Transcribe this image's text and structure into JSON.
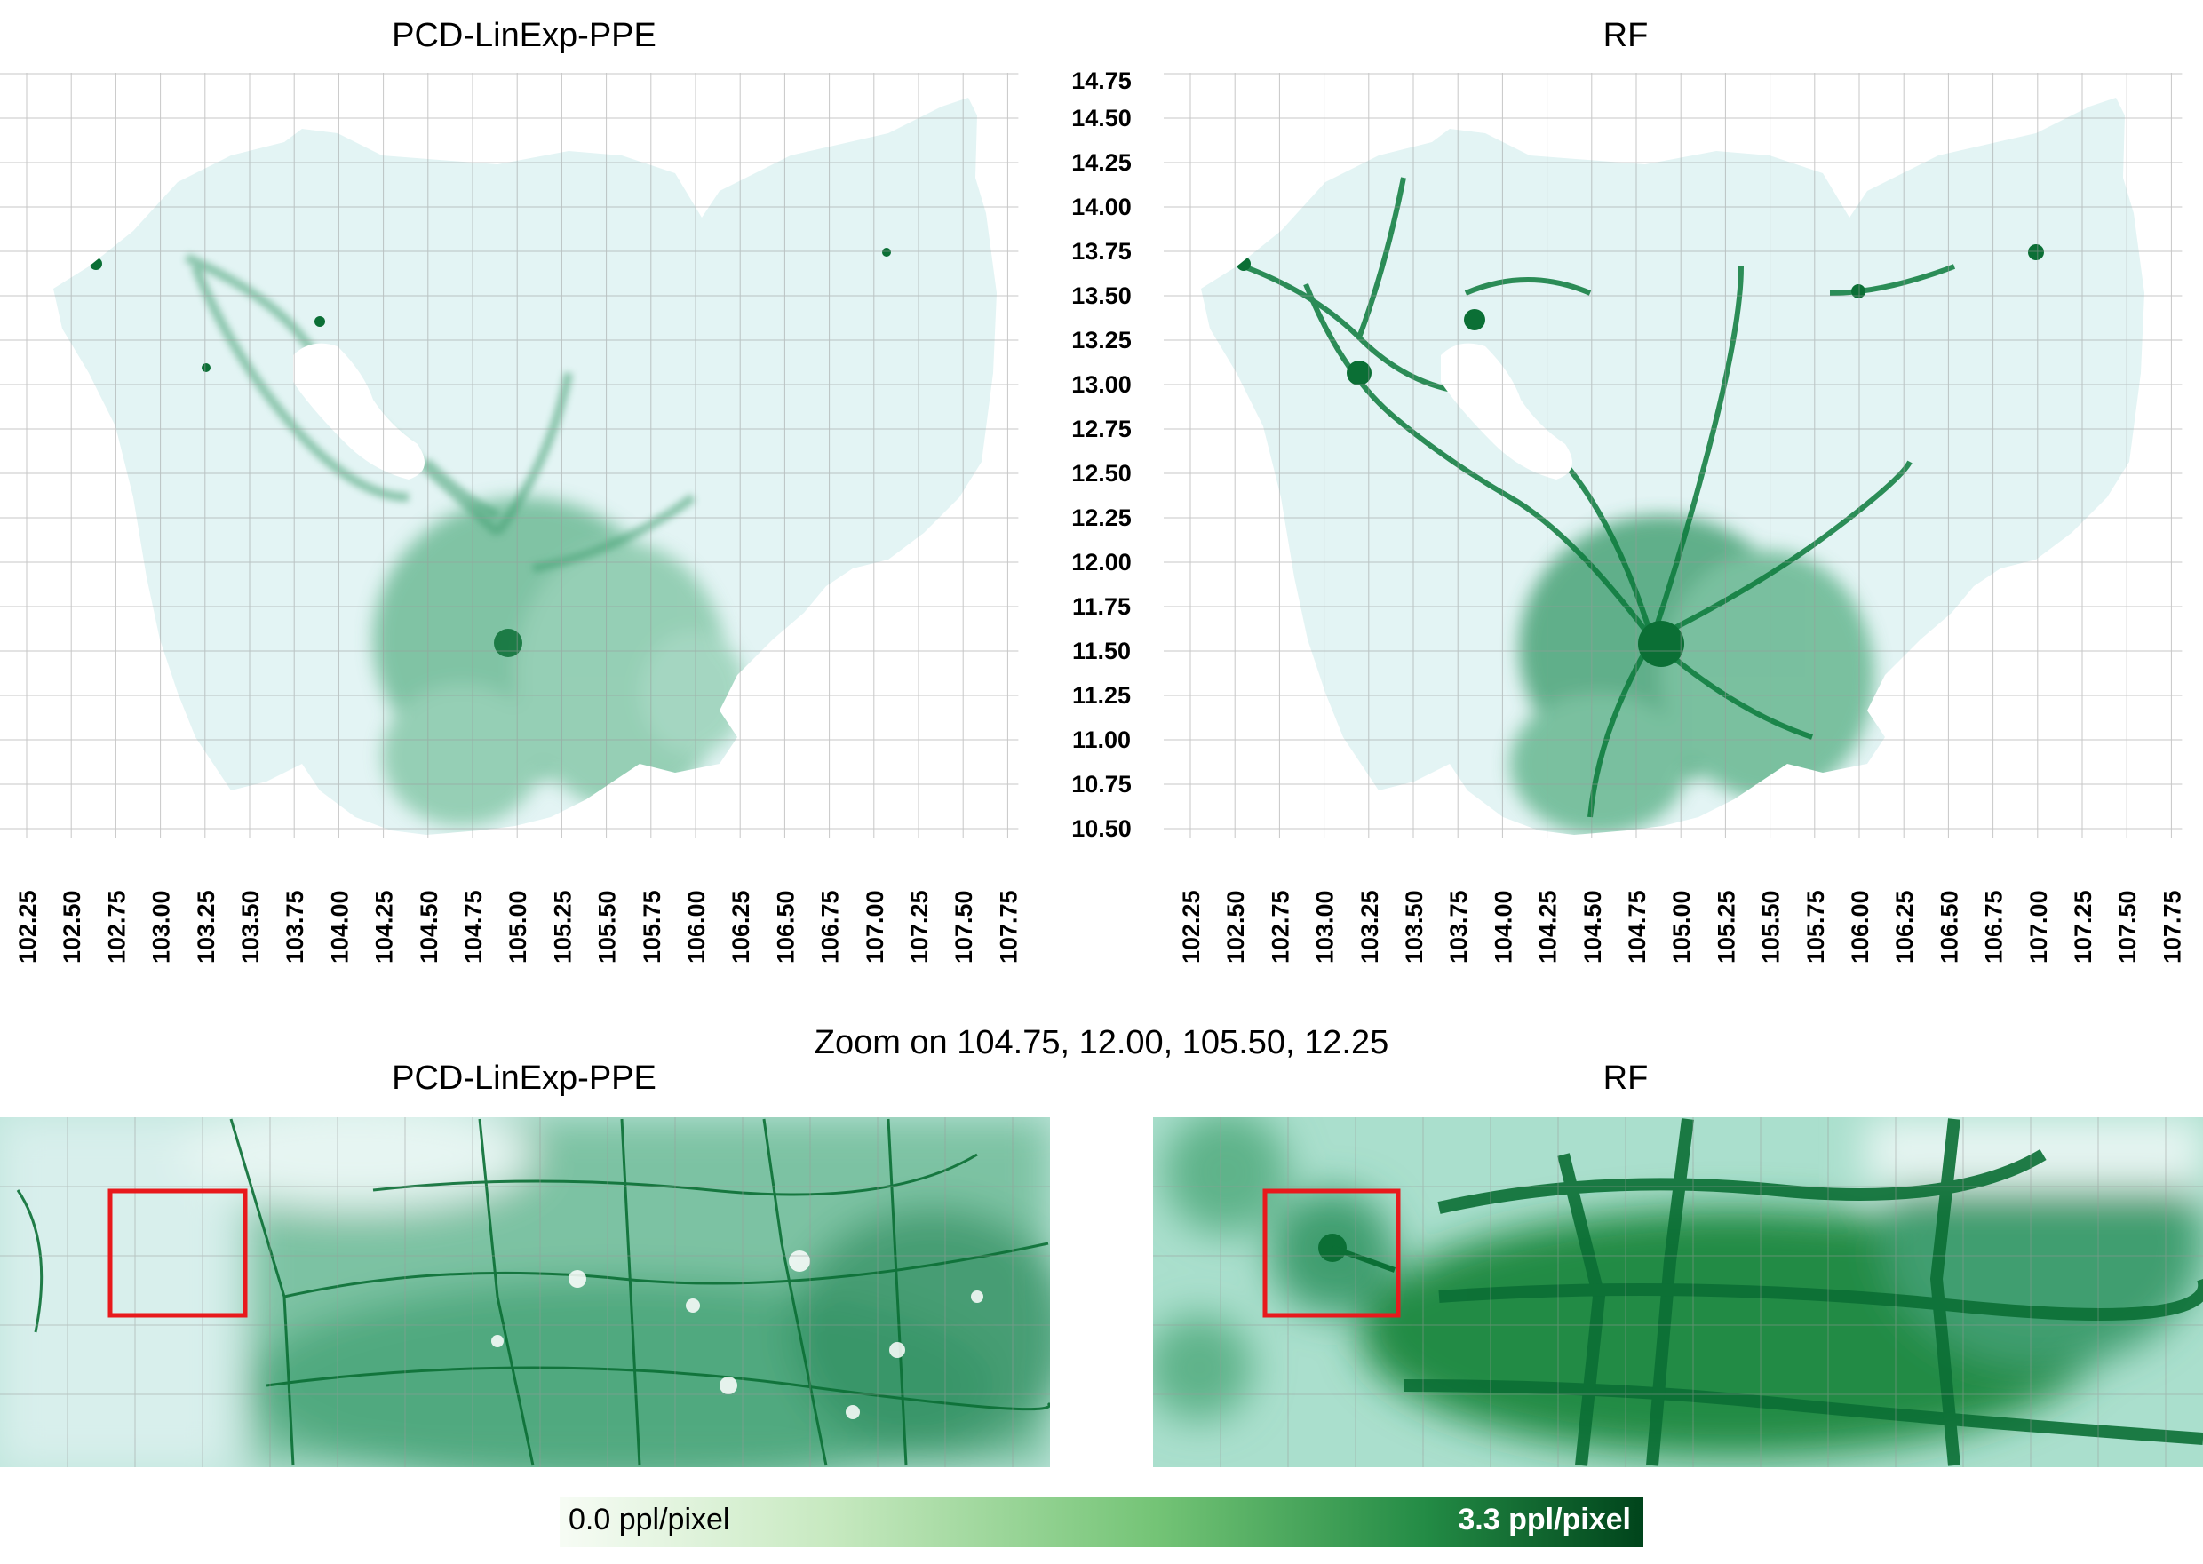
{
  "titles": {
    "top_left": "PCD-LinExp-PPE",
    "top_right": "RF",
    "zoom_caption": "Zoom on 104.75, 12.00, 105.50, 12.25",
    "bottom_left": "PCD-LinExp-PPE",
    "bottom_right": "RF"
  },
  "axes": {
    "longitude_ticks": [
      "102.25",
      "102.50",
      "102.75",
      "103.00",
      "103.25",
      "103.50",
      "103.75",
      "104.00",
      "104.25",
      "104.50",
      "104.75",
      "105.00",
      "105.25",
      "105.50",
      "105.75",
      "106.00",
      "106.25",
      "106.50",
      "106.75",
      "107.00",
      "107.25",
      "107.50",
      "107.75"
    ],
    "latitude_ticks": [
      "14.75",
      "14.50",
      "14.25",
      "14.00",
      "13.75",
      "13.50",
      "13.25",
      "13.00",
      "12.75",
      "12.50",
      "12.25",
      "12.00",
      "11.75",
      "11.50",
      "11.25",
      "11.00",
      "10.75",
      "10.50"
    ]
  },
  "colorbar": {
    "min_label": "0.0 ppl/pixel",
    "max_label": "3.3 ppl/pixel",
    "colors": [
      "#f7fcf5",
      "#c7e9c0",
      "#74c476",
      "#238b45",
      "#00441b"
    ]
  },
  "colors": {
    "low_density": "#e3f4f4",
    "high_density": "#0b7a3b",
    "highlight_box": "#e8191c",
    "grid": "#9a9a9a"
  }
}
